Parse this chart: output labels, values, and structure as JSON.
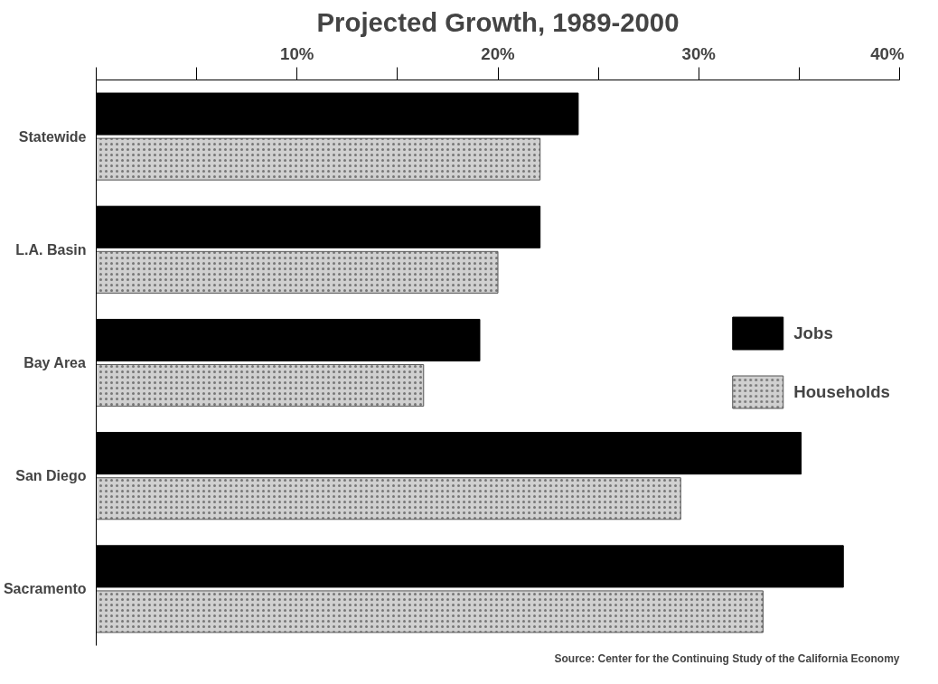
{
  "chart_data": {
    "type": "bar",
    "orientation": "horizontal",
    "title": "Projected Growth, 1989-2000",
    "categories": [
      "Statewide",
      "L.A. Basin",
      "Bay Area",
      "San Diego",
      "Sacramento"
    ],
    "series": [
      {
        "name": "Jobs",
        "color": "#000000",
        "values": [
          24.0,
          22.1,
          19.1,
          35.1,
          37.2
        ]
      },
      {
        "name": "Households",
        "color": "#d0d0d0",
        "values": [
          22.1,
          20.0,
          16.3,
          29.1,
          33.2
        ]
      }
    ],
    "xlim": [
      0,
      40
    ],
    "xticks": [
      {
        "value": 0,
        "label": null
      },
      {
        "value": 5,
        "label": null
      },
      {
        "value": 10,
        "label": "10%"
      },
      {
        "value": 15,
        "label": null
      },
      {
        "value": 20,
        "label": "20%"
      },
      {
        "value": 25,
        "label": null
      },
      {
        "value": 30,
        "label": "30%"
      },
      {
        "value": 35,
        "label": null
      },
      {
        "value": 40,
        "label": "40%"
      }
    ],
    "grid": false,
    "legend": "right",
    "annotations": [
      "Source: Center for the Continuing Study of the California Economy"
    ]
  }
}
